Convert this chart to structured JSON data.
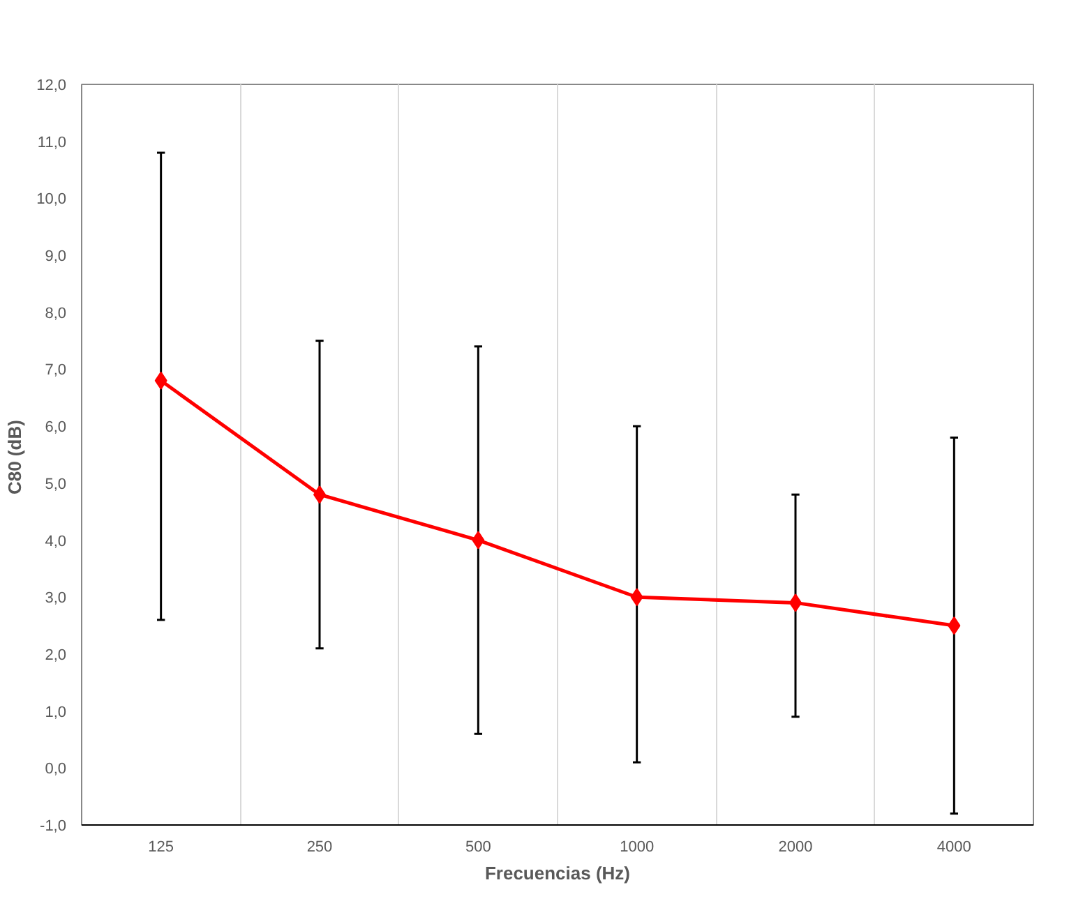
{
  "chart_data": {
    "type": "line",
    "xlabel": "Frecuencias (Hz)",
    "ylabel": "C80  (dB)",
    "categories": [
      "125",
      "250",
      "500",
      "1000",
      "2000",
      "4000"
    ],
    "series": [
      {
        "color": "#ff0000",
        "values": [
          6.8,
          4.8,
          4.0,
          3.0,
          2.9,
          2.5
        ],
        "errors": [
          [
            2.6,
            10.8
          ],
          [
            2.1,
            7.5
          ],
          [
            0.6,
            7.4
          ],
          [
            0.1,
            6.0
          ],
          [
            0.9,
            4.8
          ],
          [
            -0.8,
            5.8
          ]
        ]
      }
    ],
    "ylim": [
      -1,
      12
    ],
    "yticks": [
      {
        "value": -1,
        "label": "-1,0"
      },
      {
        "value": 0,
        "label": "0,0"
      },
      {
        "value": 1,
        "label": "1,0"
      },
      {
        "value": 2,
        "label": "2,0"
      },
      {
        "value": 3,
        "label": "3,0"
      },
      {
        "value": 4,
        "label": "4,0"
      },
      {
        "value": 5,
        "label": "5,0"
      },
      {
        "value": 6,
        "label": "6,0"
      },
      {
        "value": 7,
        "label": "7,0"
      },
      {
        "value": 8,
        "label": "8,0"
      },
      {
        "value": 9,
        "label": "9,0"
      },
      {
        "value": 10,
        "label": "10,0"
      },
      {
        "value": 11,
        "label": "11,0"
      },
      {
        "value": 12,
        "label": "12,0"
      }
    ],
    "grid": "x",
    "marker": "diamond",
    "line_style": "solid"
  }
}
